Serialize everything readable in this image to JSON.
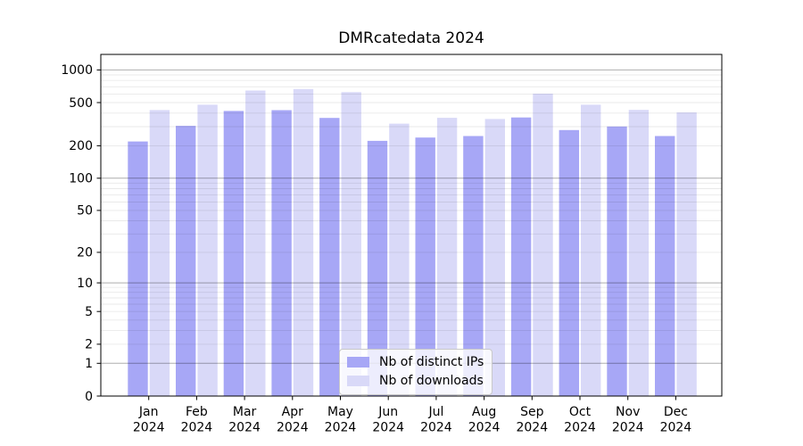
{
  "chart_data": {
    "type": "bar",
    "title": "DMRcatedata 2024",
    "categories": [
      "Jan",
      "Feb",
      "Mar",
      "Apr",
      "May",
      "Jun",
      "Jul",
      "Aug",
      "Sep",
      "Oct",
      "Nov",
      "Dec"
    ],
    "x_year_line": "2024",
    "series": [
      {
        "name": "Nb of distinct IPs",
        "color": "#a7a7f6",
        "values": [
          219,
          305,
          419,
          426,
          361,
          222,
          238,
          246,
          365,
          279,
          301,
          246
        ]
      },
      {
        "name": "Nb of downloads",
        "color": "#d9d9f8",
        "values": [
          427,
          478,
          646,
          667,
          624,
          320,
          362,
          353,
          605,
          478,
          428,
          406
        ]
      }
    ],
    "y_scale": "log1p",
    "y_tick_values": [
      0,
      1,
      2,
      5,
      10,
      20,
      50,
      100,
      200,
      500,
      1000
    ],
    "y_tick_labels": [
      "0",
      "1",
      "2",
      "5",
      "10",
      "20",
      "50",
      "100",
      "200",
      "500",
      "1000"
    ],
    "y_major_gridlines": [
      1,
      10,
      100,
      1000
    ],
    "y_minor_gridlines": [
      2,
      3,
      4,
      5,
      6,
      7,
      8,
      9,
      20,
      30,
      40,
      50,
      60,
      70,
      80,
      90,
      200,
      300,
      400,
      500,
      600,
      700,
      800,
      900
    ],
    "ylim_top": 1390,
    "grid": true,
    "legend_position": "lower center",
    "xlabel": "",
    "ylabel": ""
  },
  "colors": {
    "background": "#ffffff",
    "bar_distinct_ips": "#a7a7f6",
    "bar_downloads": "#d9d9f8",
    "axis": "#000000",
    "major_grid_rgba": "rgba(0,0,0,0.32)",
    "minor_grid_rgba": "rgba(0,0,0,0.085)",
    "legend_border": "#c9c9c9"
  }
}
